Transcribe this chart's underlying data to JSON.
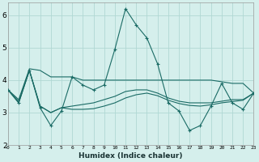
{
  "xlabel": "Humidex (Indice chaleur)",
  "xlim": [
    0,
    23
  ],
  "ylim": [
    2,
    6.4
  ],
  "yticks": [
    2,
    3,
    4,
    5,
    6
  ],
  "bg_color": "#d5efec",
  "grid_color": "#b0d8d4",
  "line_color": "#1a6b65",
  "lines": [
    {
      "x": [
        0,
        1,
        2,
        3,
        4,
        5,
        6,
        7,
        8,
        9,
        10,
        11,
        12,
        13,
        14,
        15,
        16,
        17,
        18,
        19,
        20,
        21,
        22,
        23
      ],
      "y": [
        3.7,
        3.3,
        4.3,
        3.15,
        2.6,
        3.05,
        4.1,
        3.85,
        3.7,
        3.85,
        4.95,
        6.2,
        5.7,
        5.3,
        4.5,
        3.3,
        3.05,
        2.45,
        2.6,
        3.2,
        3.9,
        3.3,
        3.1,
        3.6
      ],
      "marker": "+"
    },
    {
      "x": [
        0,
        1,
        2,
        3,
        4,
        5,
        6,
        7,
        8,
        9,
        10,
        11,
        12,
        13,
        14,
        15,
        16,
        17,
        18,
        19,
        20,
        21,
        22,
        23
      ],
      "y": [
        3.7,
        3.4,
        4.35,
        4.3,
        4.1,
        4.1,
        4.1,
        4.0,
        4.0,
        4.0,
        4.0,
        4.0,
        4.0,
        4.0,
        4.0,
        4.0,
        4.0,
        4.0,
        4.0,
        4.0,
        3.95,
        3.9,
        3.9,
        3.6
      ],
      "marker": null
    },
    {
      "x": [
        0,
        1,
        2,
        3,
        4,
        5,
        6,
        7,
        8,
        9,
        10,
        11,
        12,
        13,
        14,
        15,
        16,
        17,
        18,
        19,
        20,
        21,
        22,
        23
      ],
      "y": [
        3.7,
        3.35,
        4.3,
        3.2,
        3.0,
        3.15,
        3.2,
        3.25,
        3.3,
        3.4,
        3.5,
        3.65,
        3.7,
        3.7,
        3.6,
        3.45,
        3.35,
        3.3,
        3.3,
        3.3,
        3.35,
        3.4,
        3.4,
        3.6
      ],
      "marker": null
    },
    {
      "x": [
        0,
        1,
        2,
        3,
        4,
        5,
        6,
        7,
        8,
        9,
        10,
        11,
        12,
        13,
        14,
        15,
        16,
        17,
        18,
        19,
        20,
        21,
        22,
        23
      ],
      "y": [
        3.7,
        3.3,
        4.3,
        3.2,
        3.0,
        3.15,
        3.1,
        3.1,
        3.12,
        3.2,
        3.3,
        3.45,
        3.55,
        3.6,
        3.52,
        3.38,
        3.28,
        3.22,
        3.2,
        3.24,
        3.3,
        3.34,
        3.38,
        3.6
      ],
      "marker": null
    }
  ]
}
